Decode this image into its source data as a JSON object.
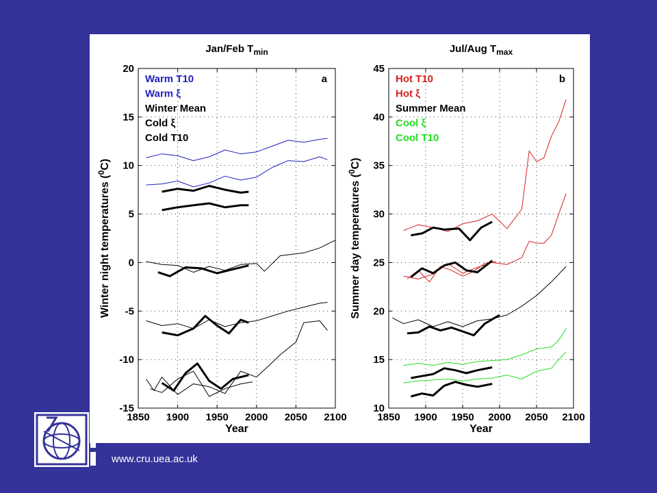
{
  "footer": {
    "url": "www.cru.uea.ac.uk"
  },
  "colors": {
    "background": "#333399",
    "warm": "#1f1fbf",
    "hot": "#d42020",
    "cool": "#22dd22",
    "black": "#000000"
  },
  "chart_data": [
    {
      "type": "line",
      "panel_letter": "a",
      "title": "Jan/Feb T",
      "title_subscript": "min",
      "xlabel": "Year",
      "ylabel": "Winter night temperatures (",
      "ylabel_unit_sup": "0",
      "ylabel_unit": "C)",
      "xlim": [
        1850,
        2100
      ],
      "ylim": [
        -15,
        20
      ],
      "xticks": [
        "1850",
        "1900",
        "1950",
        "2000",
        "2050",
        "2100"
      ],
      "yticks": [
        "-15",
        "-10",
        "-5",
        "0",
        "5",
        "10",
        "15",
        "20"
      ],
      "grid": "dotted",
      "legend_position": "top-left",
      "legend": [
        {
          "label": "Warm T10",
          "color": "#1f1fbf"
        },
        {
          "label": "Warm ξ",
          "color": "#1f1fbf"
        },
        {
          "label": "Winter Mean",
          "color": "#000000"
        },
        {
          "label": "Cold ξ",
          "color": "#000000"
        },
        {
          "label": "Cold T10",
          "color": "#000000"
        }
      ],
      "series": [
        {
          "color": "#1f1fbf",
          "width": 1,
          "x": [
            1860,
            1880,
            1900,
            1920,
            1940,
            1960,
            1980,
            2000,
            2020,
            2040,
            2060,
            2080,
            2090
          ],
          "y": [
            10.8,
            11.2,
            11.0,
            10.5,
            10.9,
            11.6,
            11.2,
            11.4,
            12.0,
            12.6,
            12.4,
            12.7,
            12.8
          ]
        },
        {
          "color": "#1f1fbf",
          "width": 1,
          "x": [
            1860,
            1880,
            1900,
            1920,
            1940,
            1960,
            1980,
            2000,
            2020,
            2040,
            2060,
            2080,
            2090
          ],
          "y": [
            8.0,
            8.1,
            8.4,
            7.8,
            8.2,
            8.9,
            8.5,
            8.8,
            9.8,
            10.5,
            10.4,
            10.9,
            10.6
          ]
        },
        {
          "color": "#000000",
          "width": 3,
          "x": [
            1880,
            1900,
            1920,
            1940,
            1960,
            1980,
            1990
          ],
          "y": [
            7.3,
            7.6,
            7.4,
            7.9,
            7.5,
            7.2,
            7.3
          ]
        },
        {
          "color": "#000000",
          "width": 3,
          "x": [
            1880,
            1900,
            1920,
            1940,
            1960,
            1980,
            1990
          ],
          "y": [
            5.4,
            5.7,
            5.9,
            6.1,
            5.7,
            5.9,
            5.9
          ]
        },
        {
          "color": "#000000",
          "width": 1,
          "x": [
            1860,
            1880,
            1900,
            1920,
            1940,
            1960,
            1980,
            2000,
            2010,
            2030,
            2060,
            2080,
            2100
          ],
          "y": [
            0.1,
            -0.2,
            -0.3,
            -1.0,
            -0.4,
            -0.8,
            -0.2,
            -0.1,
            -0.9,
            0.7,
            1.0,
            1.5,
            2.3
          ]
        },
        {
          "color": "#000000",
          "width": 3,
          "x": [
            1875,
            1890,
            1910,
            1930,
            1950,
            1970,
            1990
          ],
          "y": [
            -1.0,
            -1.4,
            -0.5,
            -0.6,
            -1.1,
            -0.7,
            -0.3
          ]
        },
        {
          "color": "#000000",
          "width": 1,
          "x": [
            1860,
            1880,
            1900,
            1920,
            1940,
            1960,
            1980,
            2000,
            2020,
            2040,
            2060,
            2080,
            2090
          ],
          "y": [
            -6.0,
            -6.5,
            -6.3,
            -6.8,
            -5.9,
            -6.6,
            -6.2,
            -6.0,
            -5.5,
            -5.0,
            -4.6,
            -4.2,
            -4.1
          ]
        },
        {
          "color": "#000000",
          "width": 3,
          "x": [
            1880,
            1900,
            1920,
            1935,
            1950,
            1965,
            1980,
            1990
          ],
          "y": [
            -7.2,
            -7.5,
            -6.8,
            -5.5,
            -6.5,
            -7.3,
            -5.9,
            -6.2
          ]
        },
        {
          "color": "#000000",
          "width": 1,
          "x": [
            1860,
            1870,
            1880,
            1900,
            1920,
            1940,
            1960,
            1980,
            2000,
            2020,
            2030,
            2050,
            2060,
            2080,
            2090
          ],
          "y": [
            -12.0,
            -13.2,
            -11.8,
            -13.6,
            -12.5,
            -12.8,
            -13.5,
            -11.2,
            -11.8,
            -10.3,
            -9.5,
            -8.2,
            -6.2,
            -6.0,
            -7.0
          ]
        },
        {
          "color": "#000000",
          "width": 1,
          "x": [
            1865,
            1880,
            1900,
            1920,
            1940,
            1960,
            1980,
            1995
          ],
          "y": [
            -13.0,
            -13.4,
            -12.0,
            -11.2,
            -13.8,
            -13.0,
            -12.5,
            -12.3
          ]
        },
        {
          "color": "#000000",
          "width": 3,
          "x": [
            1880,
            1895,
            1910,
            1925,
            1940,
            1955,
            1970,
            1990
          ],
          "y": [
            -12.4,
            -13.2,
            -11.4,
            -10.4,
            -12.2,
            -13.0,
            -12.0,
            -11.6
          ]
        }
      ]
    },
    {
      "type": "line",
      "panel_letter": "b",
      "title": "Jul/Aug T",
      "title_subscript": "max",
      "xlabel": "Year",
      "ylabel": "Summer day temperatures (",
      "ylabel_unit_sup": "0",
      "ylabel_unit": "C)",
      "xlim": [
        1850,
        2100
      ],
      "ylim": [
        10,
        45
      ],
      "xticks": [
        "1850",
        "1900",
        "1950",
        "2000",
        "2050",
        "2100"
      ],
      "yticks": [
        "10",
        "15",
        "20",
        "25",
        "30",
        "35",
        "40",
        "45"
      ],
      "grid": "dotted",
      "legend_position": "top-left",
      "legend": [
        {
          "label": "Hot T10",
          "color": "#d42020"
        },
        {
          "label": "Hot ξ",
          "color": "#d42020"
        },
        {
          "label": "Summer Mean",
          "color": "#000000"
        },
        {
          "label": "Cool ξ",
          "color": "#22dd22"
        },
        {
          "label": "Cool T10",
          "color": "#22dd22"
        }
      ],
      "series": [
        {
          "color": "#d42020",
          "width": 1,
          "x": [
            1870,
            1890,
            1910,
            1930,
            1950,
            1970,
            1990,
            2010,
            2030,
            2040,
            2050,
            2060,
            2070,
            2080,
            2090
          ],
          "y": [
            28.3,
            28.9,
            28.6,
            28.2,
            29.0,
            29.3,
            30.0,
            28.5,
            30.5,
            36.5,
            35.4,
            35.8,
            38.0,
            39.5,
            41.8
          ]
        },
        {
          "color": "#d42020",
          "width": 1,
          "x": [
            1870,
            1890,
            1910,
            1930,
            1950,
            1970,
            1990,
            2010,
            2030,
            2040,
            2050,
            2060,
            2070,
            2080,
            2090
          ],
          "y": [
            23.6,
            23.3,
            23.8,
            24.9,
            23.9,
            24.5,
            25.0,
            24.8,
            25.5,
            27.2,
            27.0,
            27.0,
            27.8,
            30.0,
            32.1
          ]
        },
        {
          "color": "#d42020",
          "width": 1,
          "x": [
            1875,
            1890,
            1905,
            1920,
            1935,
            1950,
            1965,
            1980,
            1995
          ],
          "y": [
            23.3,
            24.2,
            23.0,
            24.6,
            24.2,
            23.6,
            24.1,
            24.9,
            25.1
          ]
        },
        {
          "color": "#000000",
          "width": 3,
          "x": [
            1880,
            1895,
            1910,
            1925,
            1945,
            1960,
            1975,
            1990
          ],
          "y": [
            27.8,
            28.0,
            28.6,
            28.4,
            28.5,
            27.3,
            28.6,
            29.2
          ]
        },
        {
          "color": "#000000",
          "width": 3,
          "x": [
            1880,
            1895,
            1910,
            1925,
            1940,
            1955,
            1970,
            1990
          ],
          "y": [
            23.5,
            24.4,
            23.9,
            24.7,
            25.0,
            24.2,
            24.0,
            25.2
          ]
        },
        {
          "color": "#000000",
          "width": 1,
          "x": [
            1855,
            1870,
            1890,
            1910,
            1930,
            1950,
            1970,
            1990,
            2010,
            2030,
            2050,
            2070,
            2090
          ],
          "y": [
            19.3,
            18.7,
            19.1,
            18.4,
            18.9,
            18.4,
            19.0,
            19.2,
            19.6,
            20.5,
            21.6,
            23.0,
            24.6
          ]
        },
        {
          "color": "#000000",
          "width": 3,
          "x": [
            1875,
            1890,
            1905,
            1920,
            1935,
            1950,
            1965,
            1980,
            2000
          ],
          "y": [
            17.7,
            17.8,
            18.4,
            18.0,
            18.3,
            17.9,
            17.5,
            18.7,
            19.6
          ]
        },
        {
          "color": "#22dd22",
          "width": 1,
          "x": [
            1870,
            1890,
            1910,
            1930,
            1950,
            1970,
            1990,
            2010,
            2030,
            2050,
            2070,
            2080,
            2090
          ],
          "y": [
            14.4,
            14.6,
            14.4,
            14.7,
            14.5,
            14.8,
            14.9,
            15.0,
            15.5,
            16.1,
            16.3,
            17.0,
            18.2
          ]
        },
        {
          "color": "#22dd22",
          "width": 1,
          "x": [
            1870,
            1890,
            1910,
            1930,
            1950,
            1970,
            1990,
            2010,
            2030,
            2050,
            2070,
            2080,
            2090
          ],
          "y": [
            12.6,
            12.8,
            12.9,
            13.0,
            12.8,
            13.0,
            13.1,
            13.4,
            13.0,
            13.8,
            14.1,
            15.0,
            15.8
          ]
        },
        {
          "color": "#000000",
          "width": 3,
          "x": [
            1880,
            1895,
            1910,
            1925,
            1940,
            1955,
            1970,
            1990
          ],
          "y": [
            13.1,
            13.3,
            13.5,
            14.1,
            13.9,
            13.6,
            13.9,
            14.2
          ]
        },
        {
          "color": "#000000",
          "width": 3,
          "x": [
            1880,
            1895,
            1910,
            1925,
            1940,
            1955,
            1970,
            1990
          ],
          "y": [
            11.2,
            11.5,
            11.3,
            12.3,
            12.7,
            12.4,
            12.2,
            12.5
          ]
        }
      ]
    }
  ]
}
